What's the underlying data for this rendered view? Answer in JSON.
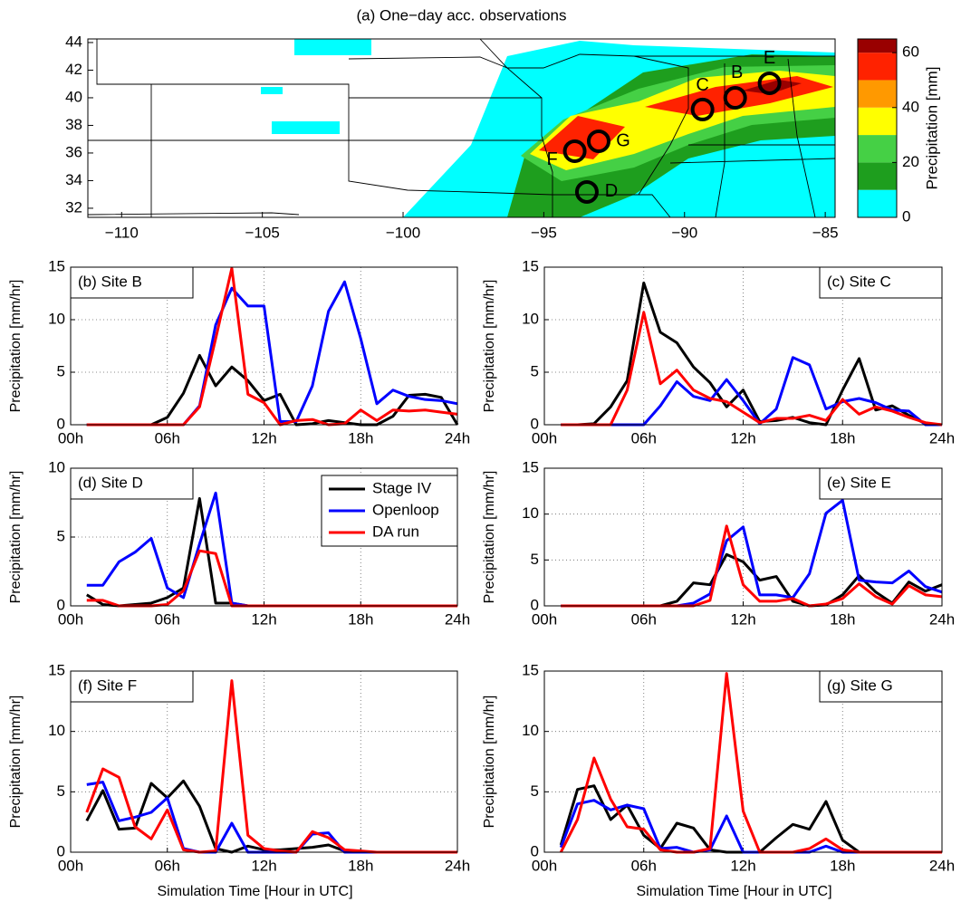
{
  "chart_data": [
    {
      "type": "map",
      "title": "(a) One−day acc. observations",
      "xlim": [
        -111.2,
        -84.65
      ],
      "ylim": [
        31.34,
        44.26
      ],
      "xticks": [
        {
          "value": -110,
          "label": "−110"
        },
        {
          "value": -105,
          "label": "−105"
        },
        {
          "value": -100,
          "label": "−100"
        },
        {
          "value": -95,
          "label": "−95"
        },
        {
          "value": -90,
          "label": "−90"
        },
        {
          "value": -85,
          "label": "−85"
        }
      ],
      "yticks": [
        32,
        34,
        36,
        38,
        40,
        42,
        44
      ],
      "sites": [
        {
          "label": "B",
          "lon": -88.2,
          "lat": 40.0
        },
        {
          "label": "C",
          "lon": -89.36,
          "lat": 39.15
        },
        {
          "label": "E",
          "lon": -86.98,
          "lat": 41.05
        },
        {
          "label": "F",
          "lon": -93.9,
          "lat": 36.13
        },
        {
          "label": "G",
          "lon": -93.05,
          "lat": 36.85
        },
        {
          "label": "D",
          "lon": -93.47,
          "lat": 33.18
        }
      ],
      "colorbar": {
        "label": "Precipitation [mm]",
        "ylim": [
          0,
          65
        ],
        "yticks": [
          0,
          20,
          40,
          60
        ],
        "bins": [
          0,
          10,
          20,
          30,
          40,
          50,
          60,
          65
        ],
        "colors": [
          "#00ffff",
          "#1e9e1e",
          "#45d045",
          "#ffff00",
          "#ff9900",
          "#ff2200",
          "#990000"
        ]
      }
    },
    {
      "type": "line",
      "title": "(b) Site B",
      "ylabel": "Precipitation [mm/hr]",
      "grid": true,
      "x": [
        1,
        2,
        3,
        4,
        5,
        6,
        7,
        8,
        9,
        10,
        11,
        12,
        13,
        14,
        15,
        16,
        17,
        18,
        19,
        20,
        21,
        22,
        23,
        24
      ],
      "xlim": [
        0,
        24
      ],
      "xticks": [
        {
          "value": 0,
          "label": "00h"
        },
        {
          "value": 6,
          "label": "06h"
        },
        {
          "value": 12,
          "label": "12h"
        },
        {
          "value": 18,
          "label": "18h"
        },
        {
          "value": 24,
          "label": "24h"
        }
      ],
      "ylim": [
        0,
        15
      ],
      "yticks": [
        0,
        5,
        10,
        15
      ],
      "series": [
        {
          "color": "#000000",
          "values": [
            0,
            0,
            0,
            0,
            0,
            0.7,
            3,
            6.6,
            3.7,
            5.5,
            4.2,
            2.3,
            2.9,
            0,
            0.1,
            0.4,
            0.2,
            0,
            0,
            0.8,
            2.8,
            2.9,
            2.6,
            0
          ]
        },
        {
          "color": "#0000ff",
          "values": [
            0,
            0,
            0,
            0,
            0,
            0,
            0,
            1.8,
            9.5,
            13,
            11.3,
            11.3,
            0.3,
            0.3,
            3.7,
            10.8,
            13.6,
            8.2,
            2,
            3.3,
            2.7,
            2.4,
            2.3,
            2
          ]
        },
        {
          "color": "#ff0000",
          "values": [
            0,
            0,
            0,
            0,
            0,
            0,
            0,
            1.7,
            8.2,
            14.9,
            2.9,
            2.1,
            0,
            0.4,
            0.5,
            0,
            0.1,
            1.4,
            0.4,
            1.4,
            1.3,
            1.4,
            1.2,
            1.0
          ]
        }
      ]
    },
    {
      "type": "line",
      "title": "(c) Site C",
      "ylabel": "Precipitation [mm/hr]",
      "grid": true,
      "x": [
        1,
        2,
        3,
        4,
        5,
        6,
        7,
        8,
        9,
        10,
        11,
        12,
        13,
        14,
        15,
        16,
        17,
        18,
        19,
        20,
        21,
        22,
        23,
        24
      ],
      "xlim": [
        0,
        24
      ],
      "xticks": [
        {
          "value": 0,
          "label": "00h"
        },
        {
          "value": 6,
          "label": "06h"
        },
        {
          "value": 12,
          "label": "12h"
        },
        {
          "value": 18,
          "label": "18h"
        },
        {
          "value": 24,
          "label": "24h"
        }
      ],
      "ylim": [
        0,
        15
      ],
      "yticks": [
        0,
        5,
        10,
        15
      ],
      "series": [
        {
          "color": "#000000",
          "values": [
            0,
            0,
            0.1,
            1.7,
            4.2,
            13.5,
            8.8,
            7.8,
            5.5,
            4,
            1.7,
            3.3,
            0.3,
            0.4,
            0.7,
            0.2,
            0,
            3.3,
            6.3,
            1.4,
            1.8,
            0.9,
            0.1,
            0
          ]
        },
        {
          "color": "#0000ff",
          "values": [
            0,
            0,
            0,
            0,
            0,
            0,
            1.8,
            4.1,
            2.7,
            2.3,
            4.3,
            2.3,
            0.1,
            1.5,
            6.4,
            5.7,
            1.5,
            2.2,
            2.5,
            2.1,
            1.4,
            1.3,
            0,
            0
          ]
        },
        {
          "color": "#ff0000",
          "values": [
            0,
            0,
            0,
            0,
            3.3,
            10.7,
            3.9,
            5.2,
            3.3,
            2.5,
            2.2,
            1.2,
            0.2,
            0.6,
            0.6,
            0.9,
            0.4,
            2.4,
            1,
            1.7,
            1.3,
            0.7,
            0.2,
            0
          ]
        }
      ]
    },
    {
      "type": "line",
      "title": "(d) Site D",
      "ylabel": "Precipitation [mm/hr]",
      "grid": true,
      "legend": "upper right",
      "x": [
        1,
        2,
        3,
        4,
        5,
        6,
        7,
        8,
        9,
        10,
        11,
        12,
        13,
        14,
        15,
        16,
        17,
        18,
        19,
        20,
        21,
        22,
        23,
        24
      ],
      "xlim": [
        0,
        24
      ],
      "xticks": [
        {
          "value": 0,
          "label": "00h"
        },
        {
          "value": 6,
          "label": "06h"
        },
        {
          "value": 12,
          "label": "12h"
        },
        {
          "value": 18,
          "label": "18h"
        },
        {
          "value": 24,
          "label": "24h"
        }
      ],
      "ylim": [
        0,
        10
      ],
      "yticks": [
        0,
        5,
        10
      ],
      "series": [
        {
          "name": "Stage IV",
          "color": "#000000",
          "values": [
            0.8,
            0.1,
            0,
            0.1,
            0.2,
            0.6,
            1.3,
            7.8,
            0.2,
            0.2,
            0,
            0,
            0,
            0,
            0,
            0,
            0,
            0,
            0,
            0,
            0,
            0,
            0,
            0
          ]
        },
        {
          "name": "Openloop",
          "color": "#0000ff",
          "values": [
            1.5,
            1.5,
            3.2,
            3.9,
            4.9,
            1.3,
            0.6,
            4.5,
            8.2,
            0.2,
            0,
            0,
            0,
            0,
            0,
            0,
            0,
            0,
            0,
            0,
            0,
            0,
            0,
            0
          ]
        },
        {
          "name": "DA run",
          "color": "#ff0000",
          "values": [
            0.4,
            0.4,
            0,
            0,
            0,
            0.1,
            1.1,
            4,
            3.8,
            0,
            0,
            0,
            0,
            0,
            0,
            0,
            0,
            0,
            0,
            0,
            0,
            0,
            0,
            0
          ]
        }
      ]
    },
    {
      "type": "line",
      "title": "(e) Site E",
      "ylabel": "Precipitation [mm/hr]",
      "grid": true,
      "x": [
        1,
        2,
        3,
        4,
        5,
        6,
        7,
        8,
        9,
        10,
        11,
        12,
        13,
        14,
        15,
        16,
        17,
        18,
        19,
        20,
        21,
        22,
        23,
        24
      ],
      "xlim": [
        0,
        24
      ],
      "xticks": [
        {
          "value": 0,
          "label": "00h"
        },
        {
          "value": 6,
          "label": "06h"
        },
        {
          "value": 12,
          "label": "12h"
        },
        {
          "value": 18,
          "label": "18h"
        },
        {
          "value": 24,
          "label": "24h"
        }
      ],
      "ylim": [
        0,
        15
      ],
      "yticks": [
        0,
        5,
        10,
        15
      ],
      "series": [
        {
          "color": "#000000",
          "values": [
            0,
            0,
            0,
            0,
            0,
            0,
            0,
            0.5,
            2.5,
            2.3,
            5.6,
            4.8,
            2.8,
            3.2,
            0.5,
            0,
            0.1,
            1.2,
            3.3,
            1.5,
            0.3,
            2.6,
            1.6,
            2.3
          ]
        },
        {
          "color": "#0000ff",
          "values": [
            0,
            0,
            0,
            0,
            0,
            0,
            0,
            0,
            0.3,
            1.3,
            7.1,
            8.6,
            1.2,
            1.2,
            0.9,
            3.5,
            10.1,
            11.5,
            2.8,
            2.6,
            2.5,
            3.8,
            2.1,
            1.5
          ]
        },
        {
          "color": "#ff0000",
          "values": [
            0,
            0,
            0,
            0,
            0,
            0,
            0,
            0,
            0,
            0.6,
            8.7,
            2.3,
            0.5,
            0.5,
            0.8,
            0,
            0.2,
            0.8,
            2.4,
            1,
            0.2,
            2.2,
            1.2,
            1
          ]
        }
      ]
    },
    {
      "type": "line",
      "title": "(f) Site F",
      "ylabel": "Precipitation [mm/hr]",
      "xlabel": "Simulation Time [Hour in UTC]",
      "grid": true,
      "x": [
        1,
        2,
        3,
        4,
        5,
        6,
        7,
        8,
        9,
        10,
        11,
        12,
        13,
        14,
        15,
        16,
        17,
        18,
        19,
        20,
        21,
        22,
        23,
        24
      ],
      "xlim": [
        0,
        24
      ],
      "xticks": [
        {
          "value": 0,
          "label": "00h"
        },
        {
          "value": 6,
          "label": "06h"
        },
        {
          "value": 12,
          "label": "12h"
        },
        {
          "value": 18,
          "label": "18h"
        },
        {
          "value": 24,
          "label": "24h"
        }
      ],
      "ylim": [
        0,
        15
      ],
      "yticks": [
        0,
        5,
        10,
        15
      ],
      "series": [
        {
          "color": "#000000",
          "values": [
            2.6,
            5.1,
            1.9,
            2,
            5.7,
            4.5,
            5.9,
            3.8,
            0.3,
            0,
            0.5,
            0.2,
            0.2,
            0.3,
            0.4,
            0.6,
            0.1,
            0,
            0,
            0,
            0,
            0,
            0,
            0
          ]
        },
        {
          "color": "#0000ff",
          "values": [
            5.6,
            5.8,
            2.6,
            2.9,
            3.3,
            4.5,
            0.3,
            0,
            0,
            2.4,
            0,
            0,
            0,
            0,
            1.5,
            1.6,
            0,
            0,
            0,
            0,
            0,
            0,
            0,
            0
          ]
        },
        {
          "color": "#ff0000",
          "values": [
            3.3,
            6.9,
            6.2,
            2.1,
            1.1,
            3.5,
            0.2,
            0,
            0.1,
            14.2,
            1.4,
            0.3,
            0.1,
            0,
            1.7,
            1.2,
            0.2,
            0.1,
            0,
            0,
            0,
            0,
            0,
            0
          ]
        }
      ]
    },
    {
      "type": "line",
      "title": "(g) Site G",
      "ylabel": "Precipitation [mm/hr]",
      "xlabel": "Simulation Time [Hour in UTC]",
      "grid": true,
      "x": [
        1,
        2,
        3,
        4,
        5,
        6,
        7,
        8,
        9,
        10,
        11,
        12,
        13,
        14,
        15,
        16,
        17,
        18,
        19,
        20,
        21,
        22,
        23,
        24
      ],
      "xlim": [
        0,
        24
      ],
      "xticks": [
        {
          "value": 0,
          "label": "00h"
        },
        {
          "value": 6,
          "label": "06h"
        },
        {
          "value": 12,
          "label": "12h"
        },
        {
          "value": 18,
          "label": "18h"
        },
        {
          "value": 24,
          "label": "24h"
        }
      ],
      "ylim": [
        0,
        15
      ],
      "yticks": [
        0,
        5,
        10,
        15
      ],
      "series": [
        {
          "color": "#000000",
          "values": [
            0.6,
            5.2,
            5.5,
            2.7,
            3.9,
            1.4,
            0.3,
            2.4,
            2,
            0.2,
            0,
            0,
            0,
            1.2,
            2.3,
            1.9,
            4.2,
            1,
            0,
            0,
            0,
            0,
            0,
            0
          ]
        },
        {
          "color": "#0000ff",
          "values": [
            0.4,
            4,
            4.3,
            3.5,
            3.9,
            3.6,
            0.3,
            0.4,
            0,
            0.2,
            3,
            0,
            0,
            0,
            0,
            0,
            0.5,
            0,
            0,
            0,
            0,
            0,
            0,
            0
          ]
        },
        {
          "color": "#ff0000",
          "values": [
            0,
            2.7,
            7.8,
            4.4,
            2.1,
            1.9,
            0.2,
            0,
            0,
            0.3,
            14.8,
            3.4,
            0,
            0,
            0,
            0.3,
            1.1,
            0.2,
            0,
            0,
            0,
            0,
            0,
            0
          ]
        }
      ]
    }
  ]
}
